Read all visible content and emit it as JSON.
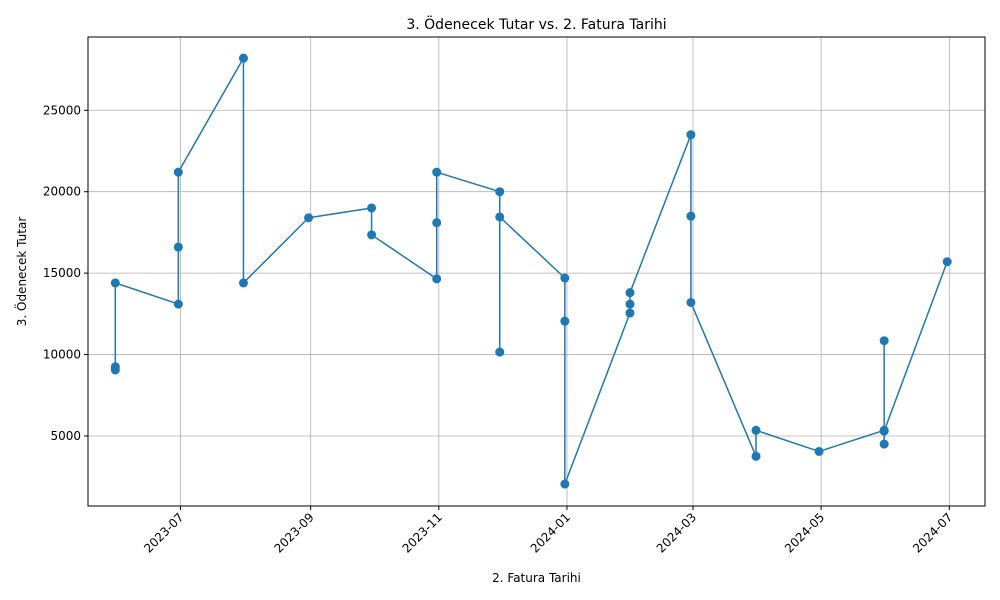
{
  "chart_data": {
    "type": "line",
    "title": "3. Ödenecek Tutar vs. 2. Fatura Tarihi",
    "xlabel": "2. Fatura Tarihi",
    "ylabel": "3. Ödenecek Tutar",
    "x_type": "date",
    "xlim": [
      "2023-05-18",
      "2024-07-18"
    ],
    "ylim": [
      700,
      29500
    ],
    "x_ticks": [
      "2023-07-01",
      "2023-09-01",
      "2023-11-01",
      "2024-01-01",
      "2024-03-01",
      "2024-05-01",
      "2024-07-01"
    ],
    "x_tick_labels": [
      "2023-07",
      "2023-09",
      "2023-11",
      "2024-01",
      "2024-03",
      "2024-05",
      "2024-07"
    ],
    "y_ticks": [
      5000,
      10000,
      15000,
      20000,
      25000
    ],
    "y_tick_labels": [
      "5000",
      "10000",
      "15000",
      "20000",
      "25000"
    ],
    "grid": true,
    "color": "#1f77b4",
    "marker": "circle",
    "series": [
      {
        "points": [
          [
            "2023-05-31",
            9050
          ],
          [
            "2023-05-31",
            9250
          ],
          [
            "2023-05-31",
            14400
          ],
          [
            "2023-06-30",
            13100
          ],
          [
            "2023-06-30",
            16600
          ],
          [
            "2023-06-30",
            21200
          ],
          [
            "2023-07-31",
            28200
          ],
          [
            "2023-07-31",
            14400
          ],
          [
            "2023-08-31",
            18400
          ],
          [
            "2023-09-30",
            19000
          ],
          [
            "2023-09-30",
            17350
          ],
          [
            "2023-10-31",
            14650
          ],
          [
            "2023-10-31",
            18100
          ],
          [
            "2023-10-31",
            21200
          ],
          [
            "2023-11-30",
            20000
          ],
          [
            "2023-11-30",
            10150
          ],
          [
            "2023-11-30",
            18450
          ],
          [
            "2023-12-31",
            14700
          ],
          [
            "2023-12-31",
            12050
          ],
          [
            "2023-12-31",
            2050
          ],
          [
            "2024-01-31",
            12550
          ],
          [
            "2024-01-31",
            13100
          ],
          [
            "2024-01-31",
            13800
          ],
          [
            "2024-02-29",
            23500
          ],
          [
            "2024-02-29",
            18500
          ],
          [
            "2024-02-29",
            13200
          ],
          [
            "2024-03-31",
            3750
          ],
          [
            "2024-03-31",
            5350
          ],
          [
            "2024-04-30",
            4050
          ],
          [
            "2024-05-31",
            5350
          ],
          [
            "2024-05-31",
            10850
          ],
          [
            "2024-05-31",
            4500
          ],
          [
            "2024-05-31",
            5300
          ],
          [
            "2024-06-30",
            15700
          ]
        ]
      }
    ]
  }
}
